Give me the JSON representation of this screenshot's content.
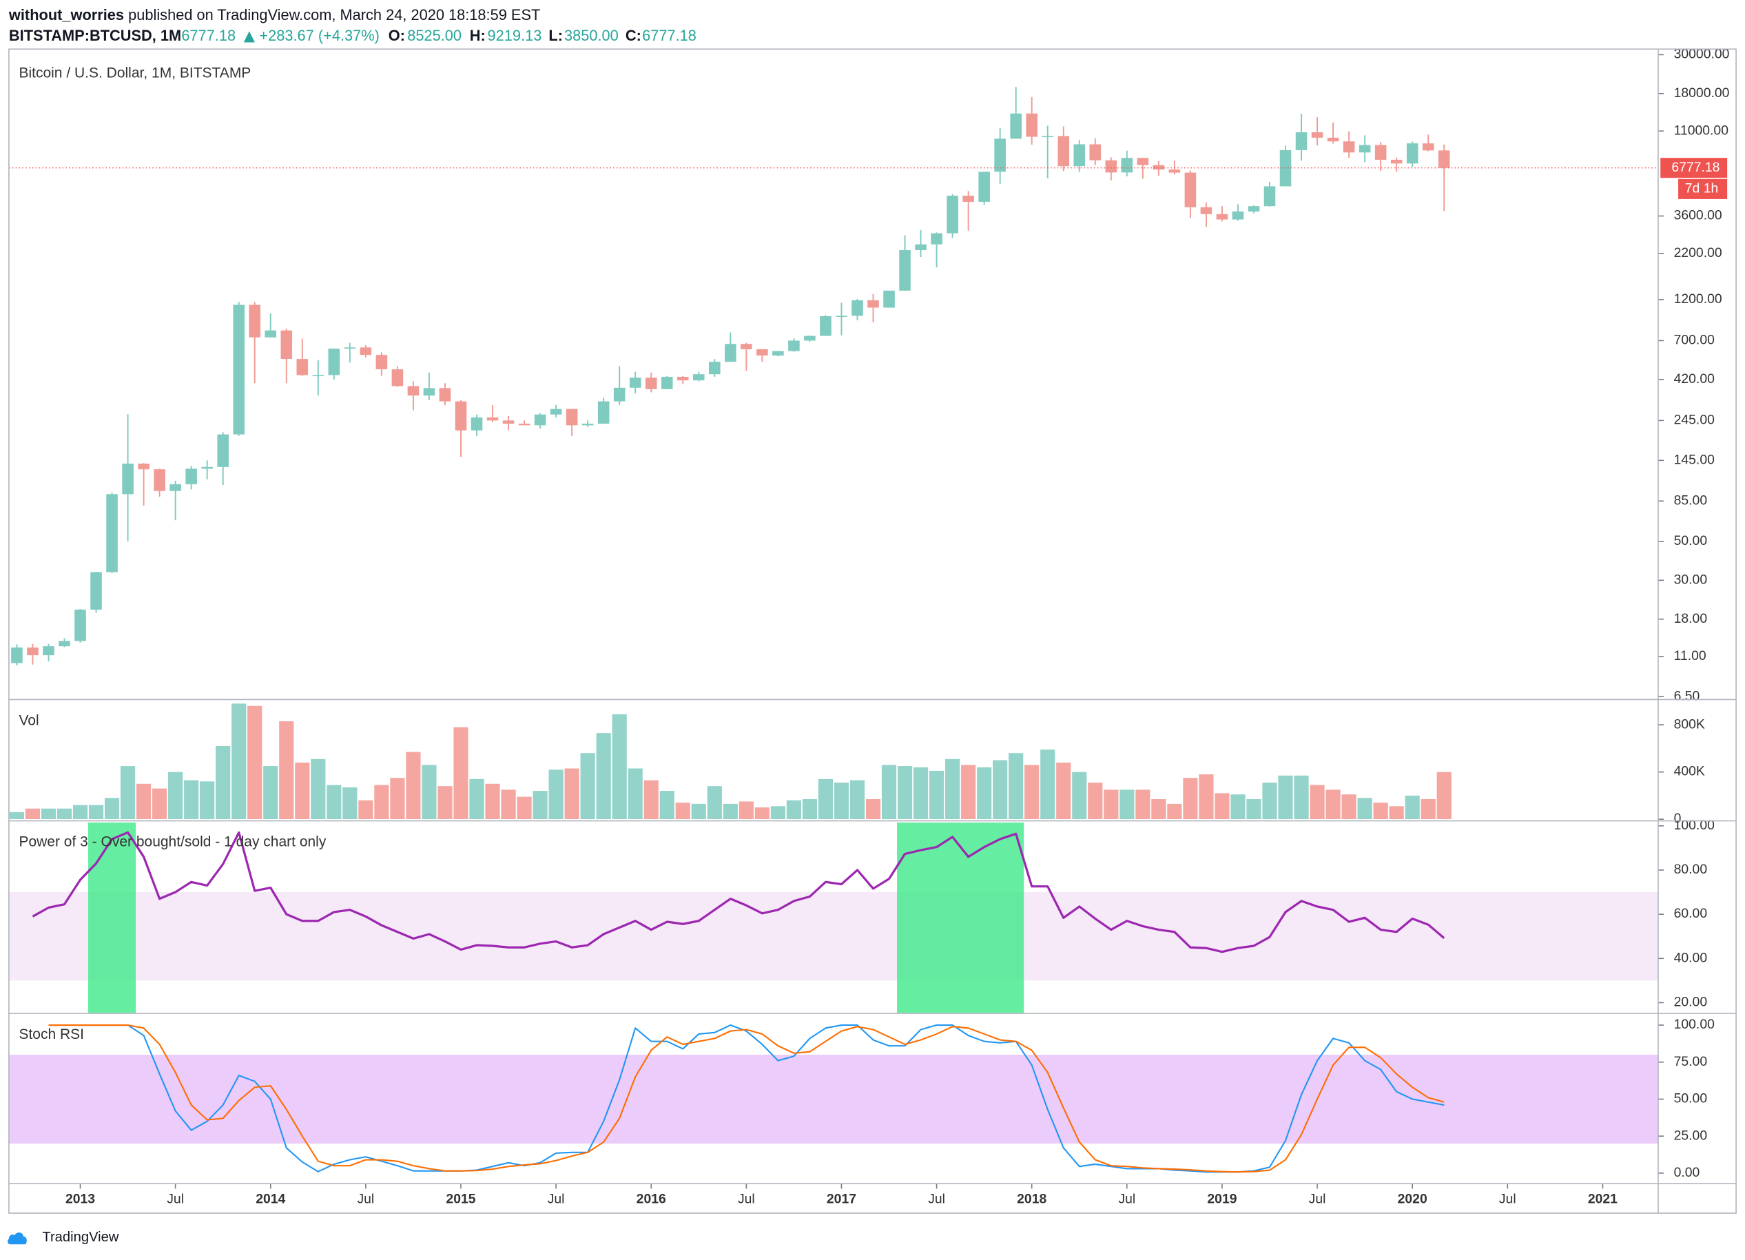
{
  "header": {
    "author": "without_worries",
    "published": "published on TradingView.com, March 24, 2020 18:18:59 EST",
    "symbol": "BITSTAMP:BTCUSD, 1M",
    "last": "6777.18",
    "change": "+283.67 (+4.37%)",
    "ohlc": [
      {
        "label": "O:",
        "value": "8525.00"
      },
      {
        "label": "H:",
        "value": "9219.13"
      },
      {
        "label": "L:",
        "value": "3850.00"
      },
      {
        "label": "C:",
        "value": "6777.18"
      }
    ]
  },
  "chart_data": [
    {
      "type": "candlestick",
      "title": "Bitcoin / U.S. Dollar, 1M, BITSTAMP",
      "x": [
        "2012-09",
        "2012-10",
        "2012-11",
        "2012-12",
        "2013-01",
        "2013-02",
        "2013-03",
        "2013-04",
        "2013-05",
        "2013-06",
        "2013-07",
        "2013-08",
        "2013-09",
        "2013-10",
        "2013-11",
        "2013-12",
        "2014-01",
        "2014-02",
        "2014-03",
        "2014-04",
        "2014-05",
        "2014-06",
        "2014-07",
        "2014-08",
        "2014-09",
        "2014-10",
        "2014-11",
        "2014-12",
        "2015-01",
        "2015-02",
        "2015-03",
        "2015-04",
        "2015-05",
        "2015-06",
        "2015-07",
        "2015-08",
        "2015-09",
        "2015-10",
        "2015-11",
        "2015-12",
        "2016-01",
        "2016-02",
        "2016-03",
        "2016-04",
        "2016-05",
        "2016-06",
        "2016-07",
        "2016-08",
        "2016-09",
        "2016-10",
        "2016-11",
        "2016-12",
        "2017-01",
        "2017-02",
        "2017-03",
        "2017-04",
        "2017-05",
        "2017-06",
        "2017-07",
        "2017-08",
        "2017-09",
        "2017-10",
        "2017-11",
        "2017-12",
        "2018-01",
        "2018-02",
        "2018-03",
        "2018-04",
        "2018-05",
        "2018-06",
        "2018-07",
        "2018-08",
        "2018-09",
        "2018-10",
        "2018-11",
        "2018-12",
        "2019-01",
        "2019-02",
        "2019-03",
        "2019-04",
        "2019-05",
        "2019-06",
        "2019-07",
        "2019-08",
        "2019-09",
        "2019-10",
        "2019-11",
        "2019-12",
        "2020-01",
        "2020-02",
        "2020-03"
      ],
      "open": [
        10.1,
        12.4,
        11.2,
        12.6,
        13.5,
        20.4,
        33.4,
        93,
        139,
        129,
        97,
        106,
        130,
        133,
        204,
        1120,
        730,
        800,
        550,
        445,
        445,
        630,
        640,
        580,
        480,
        385,
        340,
        375,
        315,
        215,
        255,
        245,
        235,
        230,
        265,
        285,
        230,
        235,
        315,
        377,
        430,
        370,
        435,
        415,
        450,
        530,
        670,
        625,
        575,
        610,
        700,
        745,
        965,
        970,
        1190,
        1080,
        1350,
        2300,
        2480,
        2870,
        4700,
        4340,
        6440,
        9950,
        13850,
        10200,
        10300,
        6930,
        9240,
        7490,
        6380,
        7730,
        7030,
        6630,
        6370,
        4040,
        3690,
        3440,
        3820,
        4100,
        5320,
        8560,
        10820,
        10080,
        9600,
        8300,
        9150,
        7540,
        7180,
        9350,
        8525
      ],
      "high": [
        12.9,
        13,
        13,
        14,
        20.6,
        33.5,
        95,
        266,
        140,
        130,
        111,
        135,
        145,
        210,
        1163,
        1163,
        1000,
        820,
        720,
        540,
        630,
        680,
        660,
        600,
        500,
        410,
        460,
        400,
        320,
        265,
        300,
        260,
        245,
        270,
        300,
        285,
        245,
        330,
        500,
        465,
        460,
        440,
        440,
        465,
        550,
        780,
        680,
        625,
        610,
        720,
        750,
        980,
        1150,
        1210,
        1290,
        1350,
        2800,
        2990,
        2900,
        4800,
        5000,
        6440,
        11400,
        19660,
        17200,
        11800,
        11700,
        9770,
        9990,
        7780,
        8500,
        7750,
        7410,
        7460,
        6550,
        4300,
        4100,
        4200,
        4140,
        5640,
        9080,
        13800,
        13200,
        12300,
        10950,
        10400,
        9530,
        7750,
        9580,
        10500,
        9219.13
      ],
      "low": [
        9.8,
        9.9,
        10.3,
        12.5,
        13.2,
        19.6,
        33,
        50,
        80,
        90,
        66,
        99,
        113,
        105,
        200,
        400,
        730,
        400,
        440,
        340,
        420,
        525,
        560,
        440,
        380,
        280,
        320,
        300,
        152,
        200,
        240,
        215,
        230,
        220,
        255,
        200,
        225,
        235,
        300,
        350,
        355,
        370,
        395,
        410,
        435,
        530,
        470,
        530,
        570,
        605,
        690,
        745,
        750,
        915,
        890,
        1080,
        1350,
        2100,
        1830,
        2700,
        2970,
        4180,
        5500,
        9950,
        9200,
        5920,
        6500,
        6430,
        7030,
        5750,
        6070,
        5880,
        6110,
        6200,
        3500,
        3120,
        3350,
        3380,
        3730,
        4070,
        5320,
        7450,
        9100,
        9330,
        7720,
        7300,
        6520,
        6430,
        6860,
        8430,
        3850
      ],
      "close": [
        12.4,
        11.2,
        12.6,
        13.5,
        20.4,
        33.4,
        93,
        139,
        129,
        97,
        106,
        130,
        133,
        204,
        1120,
        730,
        800,
        550,
        445,
        445,
        630,
        640,
        580,
        480,
        385,
        340,
        375,
        315,
        215,
        255,
        245,
        235,
        230,
        265,
        285,
        230,
        235,
        315,
        377,
        430,
        370,
        435,
        415,
        450,
        530,
        670,
        625,
        575,
        610,
        700,
        745,
        965,
        970,
        1190,
        1080,
        1350,
        2300,
        2480,
        2870,
        4700,
        4340,
        6440,
        9950,
        13850,
        10200,
        10300,
        6930,
        9240,
        7490,
        6380,
        7730,
        7030,
        6630,
        6370,
        4040,
        3690,
        3440,
        3820,
        4100,
        5320,
        8560,
        10820,
        10080,
        9600,
        8300,
        9150,
        7540,
        7180,
        9350,
        8525,
        6777.18
      ],
      "up_color": "#7fcbbf",
      "down_color": "#f19a94",
      "log_scale": true,
      "last_price": 6777.18,
      "last_price_color": "#ef5350",
      "countdown": "7d 1h",
      "xlim": [
        "2012-09",
        "2021-04"
      ],
      "xticks": [
        {
          "value": "2013-01",
          "label": "2013"
        },
        {
          "value": "2013-07",
          "label": "Jul"
        },
        {
          "value": "2014-01",
          "label": "2014"
        },
        {
          "value": "2014-07",
          "label": "Jul"
        },
        {
          "value": "2015-01",
          "label": "2015"
        },
        {
          "value": "2015-07",
          "label": "Jul"
        },
        {
          "value": "2016-01",
          "label": "2016"
        },
        {
          "value": "2016-07",
          "label": "Jul"
        },
        {
          "value": "2017-01",
          "label": "2017"
        },
        {
          "value": "2017-07",
          "label": "Jul"
        },
        {
          "value": "2018-01",
          "label": "2018"
        },
        {
          "value": "2018-07",
          "label": "Jul"
        },
        {
          "value": "2019-01",
          "label": "2019"
        },
        {
          "value": "2019-07",
          "label": "Jul"
        },
        {
          "value": "2020-01",
          "label": "2020"
        },
        {
          "value": "2020-07",
          "label": "Jul"
        },
        {
          "value": "2021-01",
          "label": "2021"
        }
      ],
      "ylim": [
        6.3,
        32300
      ],
      "yticks": [
        {
          "value": 6.5,
          "label": "6.50"
        },
        {
          "value": 11,
          "label": "11.00"
        },
        {
          "value": 18,
          "label": "18.00"
        },
        {
          "value": 30,
          "label": "30.00"
        },
        {
          "value": 50,
          "label": "50.00"
        },
        {
          "value": 85,
          "label": "85.00"
        },
        {
          "value": 145,
          "label": "145.00"
        },
        {
          "value": 245,
          "label": "245.00"
        },
        {
          "value": 420,
          "label": "420.00"
        },
        {
          "value": 700,
          "label": "700.00"
        },
        {
          "value": 1200,
          "label": "1200.00"
        },
        {
          "value": 2200,
          "label": "2200.00"
        },
        {
          "value": 3600,
          "label": "3600.00"
        },
        {
          "value": 11000,
          "label": "11000.00"
        },
        {
          "value": 18000,
          "label": "18000.00"
        },
        {
          "value": 30000,
          "label": "30000.00"
        }
      ]
    },
    {
      "type": "bar",
      "title": "Vol",
      "values": [
        60000,
        90000,
        90000,
        90000,
        120000,
        120000,
        180000,
        450000,
        300000,
        260000,
        400000,
        330000,
        320000,
        620000,
        980000,
        960000,
        450000,
        830000,
        480000,
        510000,
        290000,
        270000,
        160000,
        290000,
        350000,
        570000,
        460000,
        280000,
        780000,
        340000,
        300000,
        250000,
        190000,
        240000,
        420000,
        430000,
        560000,
        730000,
        890000,
        430000,
        330000,
        240000,
        140000,
        130000,
        280000,
        130000,
        150000,
        100000,
        110000,
        160000,
        170000,
        340000,
        310000,
        330000,
        170000,
        460000,
        450000,
        440000,
        410000,
        510000,
        460000,
        440000,
        500000,
        560000,
        460000,
        590000,
        480000,
        400000,
        310000,
        250000,
        250000,
        250000,
        170000,
        130000,
        350000,
        380000,
        220000,
        210000,
        170000,
        310000,
        370000,
        370000,
        290000,
        250000,
        210000,
        180000,
        140000,
        110000,
        200000,
        170000,
        400000
      ],
      "up_color": "#94d3c9",
      "down_color": "#f5a6a1",
      "ylim": [
        0,
        1000000
      ],
      "yticks": [
        0,
        {
          "value": 400000,
          "label": "400K"
        },
        {
          "value": 800000,
          "label": "800K"
        }
      ]
    },
    {
      "type": "line",
      "title": "Power of 3 - Over bought/sold - 1 day chart only",
      "series": [
        {
          "color": "#9c27b0",
          "values": [
            null,
            59,
            63,
            64.5,
            75.6,
            83,
            94,
            97,
            86,
            67,
            70,
            74.6,
            73,
            82.7,
            97,
            70.6,
            72,
            60,
            57,
            57,
            61,
            62,
            59,
            55,
            52,
            49,
            51,
            47.7,
            44,
            46,
            45.7,
            45,
            45,
            46.7,
            47.7,
            45,
            46,
            51,
            54,
            57,
            53,
            56.6,
            55.6,
            57,
            62,
            67,
            64,
            60.4,
            62,
            66,
            68,
            74.6,
            73.6,
            80,
            71.6,
            76,
            87.3,
            89,
            90.4,
            95,
            86,
            90.4,
            94,
            96.4,
            72.6,
            72.6,
            58.4,
            63.5,
            58,
            53,
            57,
            54.6,
            53,
            52,
            45,
            44.7,
            43,
            44.7,
            45.7,
            49.7,
            61,
            66,
            63.5,
            62,
            56.6,
            58.4,
            53,
            52,
            58,
            55.3,
            49.2
          ]
        }
      ],
      "band": [
        30,
        70
      ],
      "band_color": "#f6e9f8",
      "highlights": [
        [
          "2013-02",
          "2013-04"
        ],
        [
          "2017-05",
          "2017-12"
        ]
      ],
      "highlight_color": "#3ee88a",
      "ylim": [
        15.4,
        101.5
      ],
      "yticks": [
        {
          "value": 20,
          "label": "20.00"
        },
        {
          "value": 40,
          "label": "40.00"
        },
        {
          "value": 60,
          "label": "60.00"
        },
        {
          "value": 80,
          "label": "80.00"
        },
        {
          "value": 100,
          "label": "100.00"
        }
      ]
    },
    {
      "type": "line",
      "title": "Stoch RSI",
      "series": [
        {
          "color": "#2196f3",
          "values": [
            null,
            null,
            100,
            100,
            100,
            100,
            100,
            100,
            93,
            67,
            42,
            29,
            35,
            46,
            66,
            62,
            50,
            17,
            7.5,
            1,
            6,
            9,
            11,
            8,
            5,
            1.5,
            1.5,
            1.5,
            1.5,
            2,
            4.5,
            7,
            5,
            7,
            13.5,
            14,
            14,
            35,
            63,
            98,
            89,
            89,
            84,
            94,
            95,
            100,
            96,
            87,
            76,
            79,
            91,
            98,
            100,
            100,
            90,
            86,
            86,
            97,
            100,
            100,
            93,
            89,
            88,
            89,
            73,
            43,
            17,
            4.5,
            6,
            4.5,
            3,
            3,
            3,
            2,
            1.5,
            0.8,
            0.8,
            0.8,
            1.5,
            4,
            22,
            53,
            76,
            91,
            88,
            76,
            70,
            55,
            50,
            48,
            46
          ]
        },
        {
          "color": "#ff6d00",
          "values": [
            null,
            null,
            100,
            100,
            100,
            100,
            100,
            100,
            98,
            87,
            68,
            46,
            36,
            37,
            49,
            58,
            59,
            43,
            25,
            8,
            5,
            5,
            9,
            9,
            8,
            5,
            3,
            1.5,
            1.5,
            1.7,
            2.7,
            4.5,
            5.5,
            6.3,
            8.5,
            11.5,
            14,
            21,
            37,
            65,
            83,
            92,
            87,
            89,
            91,
            96,
            97,
            94,
            86,
            81,
            82,
            89,
            96,
            99,
            97,
            92,
            87,
            90,
            94,
            99,
            98,
            94,
            90,
            89,
            83,
            68,
            44,
            21,
            9,
            5,
            4.5,
            3.5,
            3,
            2.7,
            2.2,
            1.4,
            1,
            0.8,
            1,
            2,
            9,
            26,
            50,
            73,
            85,
            85,
            78,
            67,
            58,
            51,
            48
          ]
        }
      ],
      "band": [
        20,
        80
      ],
      "band_color": "#ebccfa",
      "ylim": [
        -6,
        106.8
      ],
      "yticks": [
        {
          "value": 0,
          "label": "0.00"
        },
        {
          "value": 25,
          "label": "25.00"
        },
        {
          "value": 50,
          "label": "50.00"
        },
        {
          "value": 75,
          "label": "75.00"
        },
        {
          "value": 100,
          "label": "100.00"
        }
      ]
    }
  ],
  "footer": {
    "brand": "TradingView"
  }
}
